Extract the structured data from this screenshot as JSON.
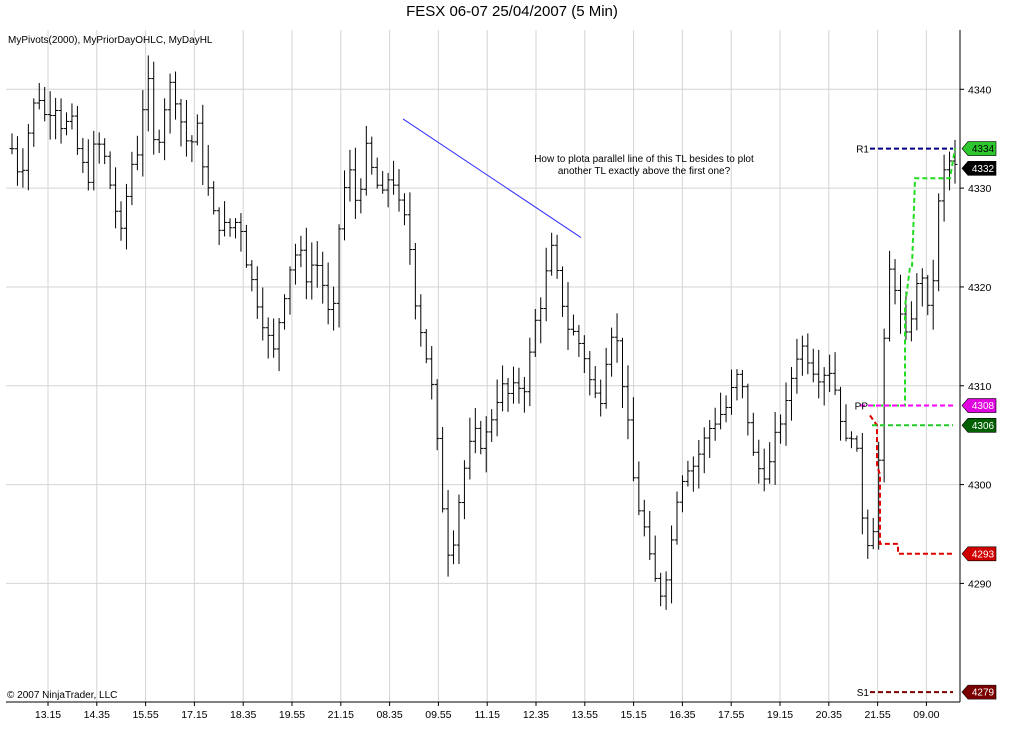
{
  "title": "FESX 06-07  25/04/2007  (5 Min)",
  "indicators_label": "MyPivots(2000), MyPriorDayOHLC, MyDayHL",
  "copyright": "© 2007 NinjaTrader, LLC",
  "annotation_lines": [
    "How to plota parallel line of  this TL besides to plot",
    "another TL exactly above the first one?"
  ],
  "chart_data": {
    "type": "ohlc",
    "title": "FESX 06-07  25/04/2007  (5 Min)",
    "ylim": [
      4278,
      4346
    ],
    "y_ticks": [
      4290,
      4300,
      4310,
      4320,
      4330,
      4340
    ],
    "x_ticks": [
      "13.15",
      "14.35",
      "15.55",
      "17.15",
      "18.35",
      "19.55",
      "21.15",
      "08.35",
      "09.55",
      "11.15",
      "12.35",
      "13.55",
      "15.15",
      "16.35",
      "17.55",
      "19.15",
      "20.35",
      "21.55",
      "09.00"
    ],
    "bar_count": 174,
    "close_path": [
      [
        0,
        4334
      ],
      [
        4,
        4331
      ],
      [
        8,
        4336
      ],
      [
        12,
        4340
      ],
      [
        16,
        4337
      ],
      [
        20,
        4339
      ],
      [
        24,
        4336
      ],
      [
        28,
        4337
      ],
      [
        32,
        4333
      ],
      [
        36,
        4331
      ],
      [
        40,
        4335
      ],
      [
        44,
        4333
      ],
      [
        48,
        4329
      ],
      [
        52,
        4325
      ],
      [
        56,
        4332
      ],
      [
        60,
        4334
      ],
      [
        64,
        4342
      ],
      [
        68,
        4333
      ],
      [
        72,
        4338
      ],
      [
        76,
        4341
      ],
      [
        80,
        4337
      ],
      [
        84,
        4334
      ],
      [
        88,
        4336
      ],
      [
        92,
        4331
      ],
      [
        96,
        4327
      ],
      [
        100,
        4326
      ],
      [
        104,
        4326
      ],
      [
        108,
        4327
      ],
      [
        112,
        4322
      ],
      [
        116,
        4319
      ],
      [
        120,
        4316
      ],
      [
        124,
        4313
      ],
      [
        128,
        4318
      ],
      [
        132,
        4322
      ],
      [
        136,
        4324
      ],
      [
        140,
        4321
      ],
      [
        144,
        4323
      ],
      [
        148,
        4320
      ],
      [
        152,
        4315
      ],
      [
        156,
        4328
      ],
      [
        160,
        4332
      ],
      [
        164,
        4328
      ],
      [
        168,
        4334
      ],
      [
        172,
        4331
      ],
      [
        176,
        4329
      ],
      [
        180,
        4332
      ],
      [
        184,
        4328
      ],
      [
        188,
        4326
      ],
      [
        192,
        4318
      ],
      [
        196,
        4314
      ],
      [
        200,
        4309
      ],
      [
        204,
        4299
      ],
      [
        208,
        4292
      ],
      [
        212,
        4298
      ],
      [
        216,
        4303
      ],
      [
        220,
        4305
      ],
      [
        224,
        4304
      ],
      [
        228,
        4307
      ],
      [
        232,
        4310
      ],
      [
        236,
        4309
      ],
      [
        240,
        4310
      ],
      [
        244,
        4310
      ],
      [
        248,
        4316
      ],
      [
        252,
        4319
      ],
      [
        256,
        4324
      ],
      [
        260,
        4320
      ],
      [
        264,
        4316
      ],
      [
        268,
        4315
      ],
      [
        272,
        4313
      ],
      [
        276,
        4309
      ],
      [
        280,
        4309
      ],
      [
        284,
        4316
      ],
      [
        288,
        4314
      ],
      [
        292,
        4307
      ],
      [
        296,
        4299
      ],
      [
        300,
        4296
      ],
      [
        304,
        4291
      ],
      [
        308,
        4289
      ],
      [
        312,
        4292
      ],
      [
        316,
        4299
      ],
      [
        320,
        4302
      ],
      [
        324,
        4302
      ],
      [
        328,
        4304
      ],
      [
        332,
        4306
      ],
      [
        336,
        4307
      ],
      [
        340,
        4308
      ],
      [
        344,
        4311
      ],
      [
        348,
        4309
      ],
      [
        352,
        4303
      ],
      [
        356,
        4301
      ],
      [
        360,
        4302
      ],
      [
        364,
        4306
      ],
      [
        368,
        4308
      ],
      [
        372,
        4313
      ],
      [
        376,
        4314
      ],
      [
        380,
        4312
      ],
      [
        384,
        4311
      ],
      [
        388,
        4312
      ],
      [
        392,
        4309
      ],
      [
        396,
        4304
      ],
      [
        400,
        4306
      ],
      [
        404,
        4297
      ],
      [
        408,
        4293
      ],
      [
        412,
        4303
      ],
      [
        416,
        4322
      ],
      [
        420,
        4320
      ],
      [
        424,
        4314
      ],
      [
        428,
        4318
      ],
      [
        432,
        4322
      ],
      [
        436,
        4316
      ],
      [
        440,
        4328
      ],
      [
        444,
        4333
      ],
      [
        448,
        4332
      ]
    ],
    "trend_line": {
      "from": [
        408,
        4337
      ],
      "to": [
        581,
        4325
      ]
    },
    "levels": [
      {
        "label": "R1",
        "value": 4334,
        "color": "#000080",
        "badge": "4334",
        "badge_color": "#2dc82d"
      },
      {
        "label": "",
        "value": 4332,
        "color": "#000000",
        "badge": "4332",
        "badge_color": "#000000"
      },
      {
        "label": "PP",
        "value": 4308,
        "color": "#ff00ff",
        "badge": "4308",
        "badge_color": "#e000e0"
      },
      {
        "label": "",
        "value": 4306,
        "color": "#22cc22",
        "badge": "4306",
        "badge_color": "#006000"
      },
      {
        "label": "",
        "value": 4293,
        "color": "#e00000",
        "badge": "4293",
        "badge_color": "#d00000"
      },
      {
        "label": "S1",
        "value": 4279,
        "color": "#800000",
        "badge": "4279",
        "badge_color": "#7a0000"
      }
    ]
  }
}
